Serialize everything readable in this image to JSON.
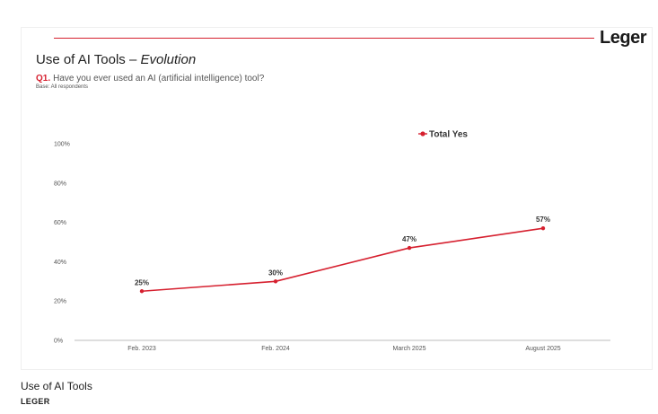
{
  "logo": "Leger",
  "header": {
    "title_main": "Use of AI Tools – ",
    "title_italic": "Evolution",
    "question_num": "Q1.",
    "question_text": "Have you ever used an AI (artificial intelligence) tool?",
    "base": "Base: All respondents"
  },
  "caption": {
    "title": "Use of AI Tools",
    "source": "LEGER"
  },
  "colors": {
    "accent": "#d6202f",
    "axis": "#bdbdbd"
  },
  "chart_data": {
    "type": "line",
    "title": "",
    "xlabel": "",
    "ylabel": "",
    "categories": [
      "Feb. 2023",
      "Feb. 2024",
      "March 2025",
      "August 2025"
    ],
    "series": [
      {
        "name": "Total Yes",
        "values": [
          25,
          30,
          47,
          57
        ]
      }
    ],
    "data_labels": [
      "25%",
      "30%",
      "47%",
      "57%"
    ],
    "y_ticks": [
      "0%",
      "20%",
      "40%",
      "60%",
      "80%",
      "100%"
    ],
    "ylim": [
      0,
      100
    ],
    "grid": false,
    "legend_position": "top-right"
  }
}
